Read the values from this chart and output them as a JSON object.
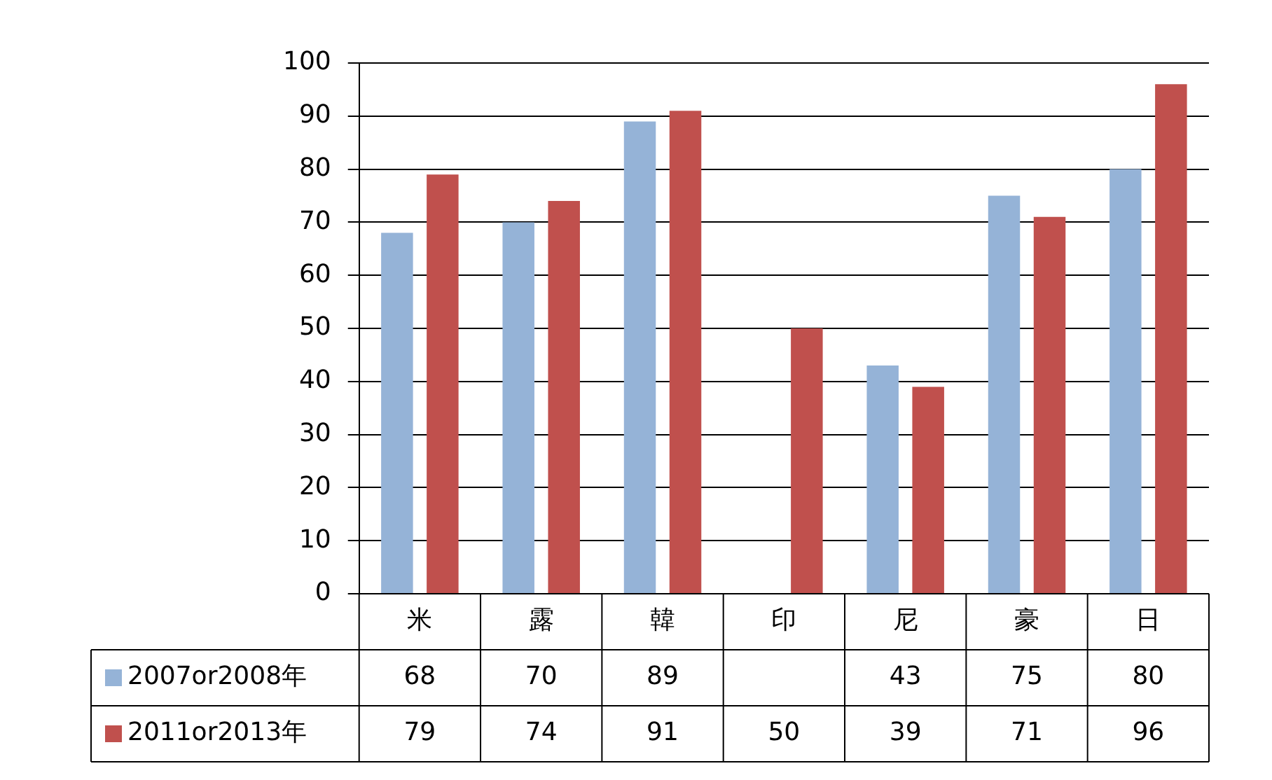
{
  "chart_data": {
    "type": "bar",
    "categories": [
      "米",
      "露",
      "韓",
      "印",
      "尼",
      "豪",
      "日"
    ],
    "series": [
      {
        "name": "2007or2008年",
        "color": "#95b3d7",
        "values": [
          68,
          70,
          89,
          null,
          43,
          75,
          80
        ]
      },
      {
        "name": "2011or2013年",
        "color": "#c0504d",
        "values": [
          79,
          74,
          91,
          50,
          39,
          71,
          96
        ]
      }
    ],
    "ylim": [
      0,
      100
    ],
    "yticks": [
      0,
      10,
      20,
      30,
      40,
      50,
      60,
      70,
      80,
      90,
      100
    ],
    "grid": "y",
    "legend": "bottom",
    "data_labels": true
  }
}
